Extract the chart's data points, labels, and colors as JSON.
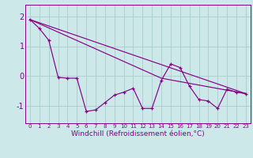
{
  "xlabel": "Windchill (Refroidissement éolien,°C)",
  "bg_color": "#cce8e8",
  "grid_color": "#aacccc",
  "line_color": "#880088",
  "x_ticks": [
    0,
    1,
    2,
    3,
    4,
    5,
    6,
    7,
    8,
    9,
    10,
    11,
    12,
    13,
    14,
    15,
    16,
    17,
    18,
    19,
    20,
    21,
    22,
    23
  ],
  "ylim": [
    -1.6,
    2.4
  ],
  "yticks": [
    -1,
    0,
    1,
    2
  ],
  "data_y": [
    1.9,
    1.6,
    1.2,
    -0.05,
    -0.08,
    -0.08,
    -1.2,
    -1.15,
    -0.9,
    -0.65,
    -0.55,
    -0.42,
    -1.1,
    -1.1,
    -0.15,
    0.4,
    0.28,
    -0.35,
    -0.8,
    -0.85,
    -1.1,
    -0.45,
    -0.55,
    -0.6
  ],
  "trend1_x": [
    0,
    23
  ],
  "trend1_y": [
    1.9,
    -0.6
  ],
  "trend2_x": [
    0,
    14,
    23
  ],
  "trend2_y": [
    1.9,
    -0.08,
    -0.6
  ],
  "xtick_fontsize": 5.0,
  "ytick_fontsize": 7.0,
  "xlabel_fontsize": 6.5
}
